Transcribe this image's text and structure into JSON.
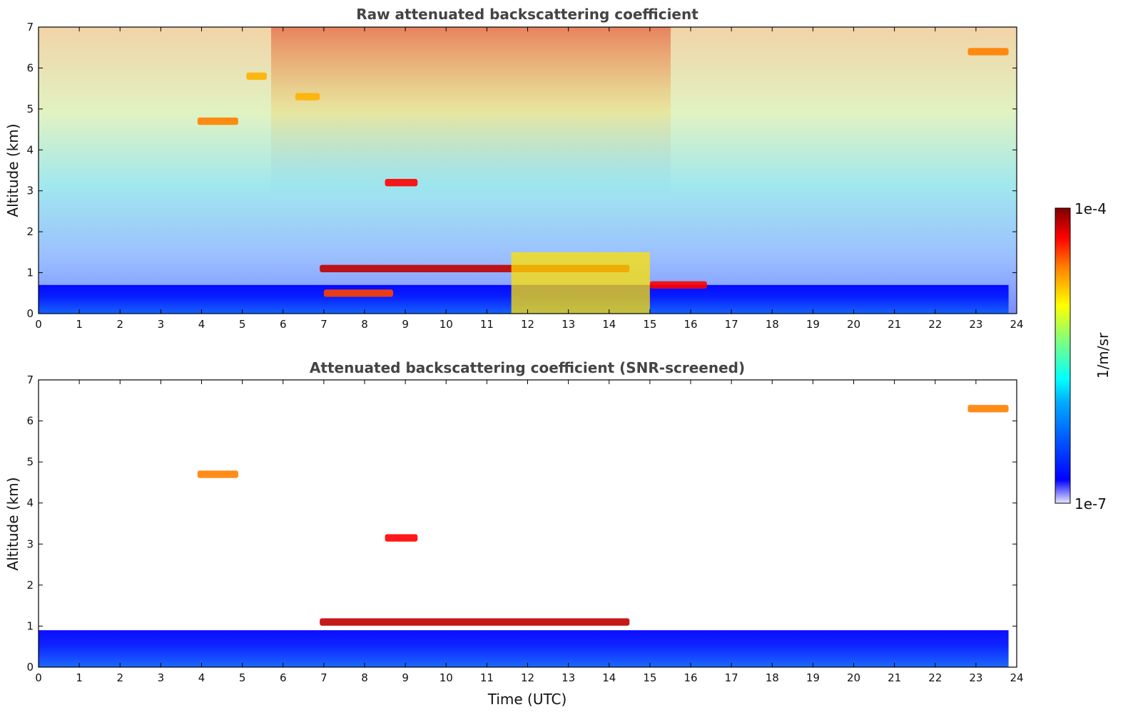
{
  "chart_data": [
    {
      "type": "heatmap",
      "title": "Raw attenuated backscattering coefficient",
      "xlabel": "",
      "ylabel": "Altitude (km)",
      "xlim": [
        0,
        24
      ],
      "ylim": [
        0,
        7
      ],
      "xticks": [
        "0",
        "1",
        "2",
        "3",
        "4",
        "5",
        "6",
        "7",
        "8",
        "9",
        "10",
        "11",
        "12",
        "13",
        "14",
        "15",
        "16",
        "17",
        "18",
        "19",
        "20",
        "21",
        "22",
        "23",
        "24"
      ],
      "yticks": [
        "0",
        "1",
        "2",
        "3",
        "4",
        "5",
        "6",
        "7"
      ],
      "features": [
        {
          "name": "boundary_layer",
          "t_start": 0.0,
          "t_end": 23.8,
          "alt_top": 0.7,
          "level": 0.25
        },
        {
          "name": "low_cloud_aerosol_layer",
          "t_start": 6.9,
          "t_end": 14.5,
          "alt": 1.1,
          "level": 0.95
        },
        {
          "name": "low_cloud_lower_band",
          "t_start": 7.0,
          "t_end": 8.7,
          "alt": 0.5,
          "level": 0.85
        },
        {
          "name": "precipitation_fallstreaks",
          "t_start": 11.6,
          "t_end": 15.0,
          "alt_top": 1.5,
          "level": 0.7
        },
        {
          "name": "cloud_16h",
          "t_start": 15.0,
          "t_end": 16.4,
          "alt": 0.7,
          "level": 0.9
        },
        {
          "name": "mid_cloud_3km",
          "t_start": 8.5,
          "t_end": 9.3,
          "alt": 3.2,
          "level": 0.9
        },
        {
          "name": "cirrus_4_5km",
          "t_start": 3.9,
          "t_end": 4.9,
          "alt": 4.7,
          "level": 0.8
        },
        {
          "name": "cirrus_fallstreak_5_6km",
          "t_start": 5.1,
          "t_end": 5.6,
          "alt": 5.8,
          "level": 0.75
        },
        {
          "name": "cirrus_fallstreak_6km",
          "t_start": 6.3,
          "t_end": 6.9,
          "alt": 5.3,
          "level": 0.75
        },
        {
          "name": "high_cirrus_23h",
          "t_start": 22.8,
          "t_end": 23.8,
          "alt": 6.4,
          "level": 0.8
        }
      ]
    },
    {
      "type": "heatmap",
      "title": "Attenuated backscattering coefficient (SNR-screened)",
      "xlabel": "Time (UTC)",
      "ylabel": "Altitude (km)",
      "xlim": [
        0,
        24
      ],
      "ylim": [
        0,
        7
      ],
      "xticks": [
        "0",
        "1",
        "2",
        "3",
        "4",
        "5",
        "6",
        "7",
        "8",
        "9",
        "10",
        "11",
        "12",
        "13",
        "14",
        "15",
        "16",
        "17",
        "18",
        "19",
        "20",
        "21",
        "22",
        "23",
        "24"
      ],
      "yticks": [
        "0",
        "1",
        "2",
        "3",
        "4",
        "5",
        "6",
        "7"
      ],
      "features": [
        {
          "name": "boundary_layer",
          "t_start": 0.0,
          "t_end": 23.8,
          "alt_top": 0.9,
          "level": 0.25
        },
        {
          "name": "low_cloud_aerosol_layer",
          "t_start": 6.9,
          "t_end": 14.5,
          "alt": 1.1,
          "level": 0.95
        },
        {
          "name": "cirrus_4_5km",
          "t_start": 3.9,
          "t_end": 4.9,
          "alt": 4.7,
          "level": 0.8
        },
        {
          "name": "mid_cloud_3km",
          "t_start": 8.5,
          "t_end": 9.3,
          "alt": 3.15,
          "level": 0.9
        },
        {
          "name": "high_cirrus_23h",
          "t_start": 22.8,
          "t_end": 23.8,
          "alt": 6.3,
          "level": 0.8
        }
      ]
    }
  ],
  "colorbar": {
    "label": "1/m/sr",
    "max_label": "1e-4",
    "min_label": "1e-7",
    "scale": "log",
    "colormap": "jet",
    "colors": [
      "#e8e8ff",
      "#0000ff",
      "#00aaff",
      "#00ffff",
      "#7fff7f",
      "#ffff00",
      "#ff8000",
      "#ff0000",
      "#800000"
    ]
  }
}
